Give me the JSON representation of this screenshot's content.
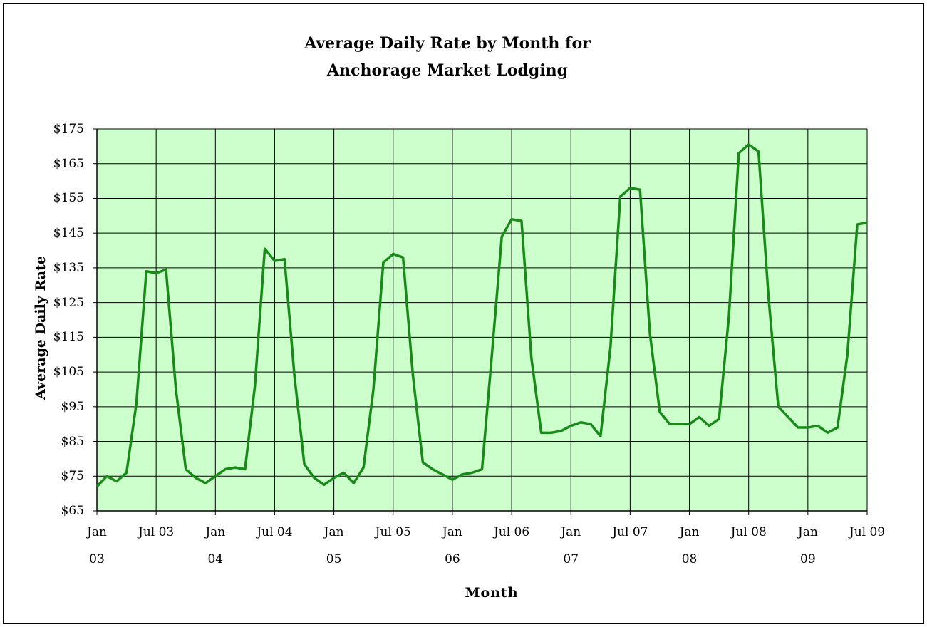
{
  "chart_data": {
    "type": "line",
    "title": "Average Daily Rate by Month for Anchorage Market Lodging",
    "x_label": "Month",
    "y_label": "Average Daily Rate",
    "categories": [
      "Jan 03",
      null,
      null,
      null,
      null,
      null,
      "Jul 03",
      null,
      null,
      null,
      null,
      null,
      "Jan 04",
      null,
      null,
      null,
      null,
      null,
      "Jul 04",
      null,
      null,
      null,
      null,
      null,
      "Jan 05",
      null,
      null,
      null,
      null,
      null,
      "Jul 05",
      null,
      null,
      null,
      null,
      null,
      "Jan 06",
      null,
      null,
      null,
      null,
      null,
      "Jul 06",
      null,
      null,
      null,
      null,
      null,
      "Jan 07",
      null,
      null,
      null,
      null,
      null,
      "Jul 07",
      null,
      null,
      null,
      null,
      null,
      "Jan 08",
      null,
      null,
      null,
      null,
      null,
      "Jul 08",
      null,
      null,
      null,
      null,
      null,
      "Jan 09",
      null,
      null,
      null,
      null,
      null,
      "Jul 09"
    ],
    "series": [
      {
        "name": "Average Daily Rate",
        "color": "#178a17",
        "values": [
          72,
          75,
          73.5,
          76,
          96,
          134,
          133.5,
          134.5,
          100,
          77,
          74.5,
          73,
          75,
          77,
          77.5,
          77,
          101,
          140.5,
          137,
          137.5,
          104,
          78.5,
          74.5,
          72.5,
          74.5,
          76,
          73,
          77.5,
          100,
          136.5,
          139,
          138,
          104,
          79,
          77,
          75.5,
          74,
          75.5,
          76,
          77,
          110,
          144,
          149,
          148.5,
          109,
          87.5,
          87.5,
          88,
          89.5,
          90.5,
          90,
          86.5,
          112,
          155.5,
          158,
          157.5,
          116,
          93.5,
          90,
          90,
          90,
          92,
          89.5,
          91.5,
          121,
          168,
          170.5,
          168.5,
          127,
          95,
          92,
          89,
          89,
          89.5,
          87.5,
          89,
          110,
          147.5,
          148
        ]
      }
    ],
    "ylim": [
      65,
      175
    ],
    "yticks": [
      {
        "value": 65,
        "label": "$65"
      },
      {
        "value": 75,
        "label": "$75"
      },
      {
        "value": 85,
        "label": "$85"
      },
      {
        "value": 95,
        "label": "$95"
      },
      {
        "value": 105,
        "label": "$105"
      },
      {
        "value": 115,
        "label": "$115"
      },
      {
        "value": 125,
        "label": "$125"
      },
      {
        "value": 135,
        "label": "$135"
      },
      {
        "value": 145,
        "label": "$145"
      },
      {
        "value": 155,
        "label": "$155"
      },
      {
        "value": 165,
        "label": "$165"
      },
      {
        "value": 175,
        "label": "$175"
      }
    ],
    "grid": true,
    "plot_background": "#ccffcc"
  }
}
